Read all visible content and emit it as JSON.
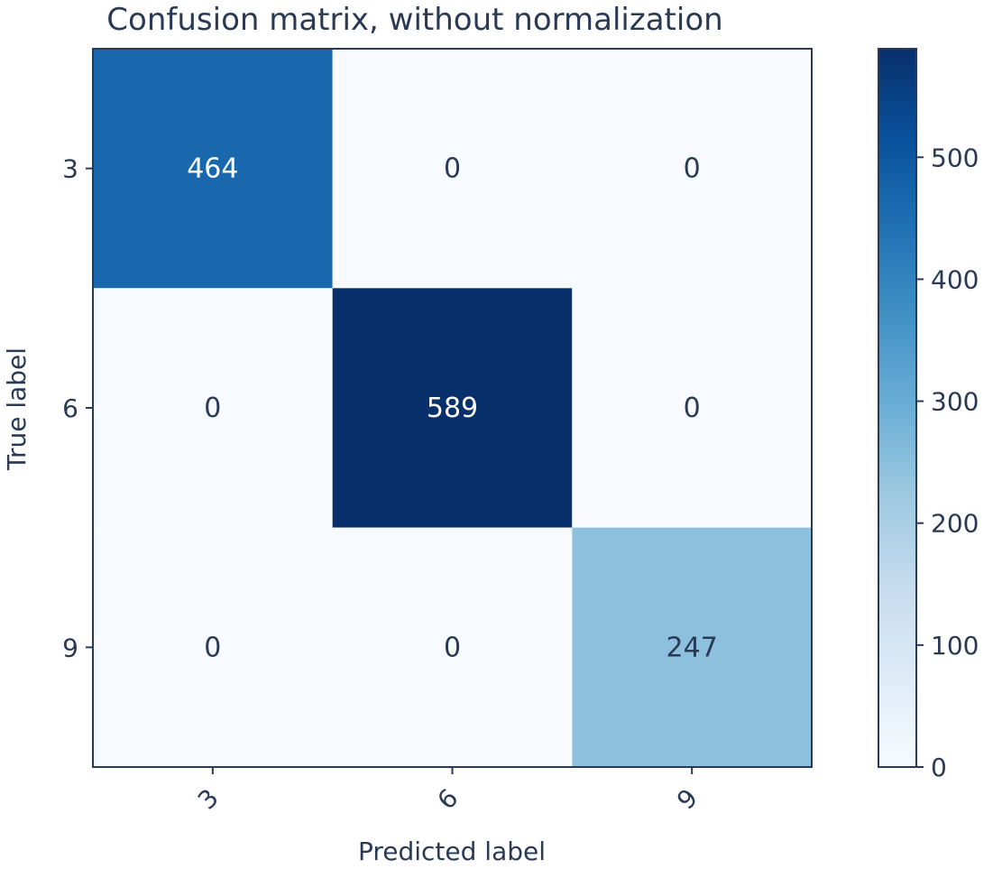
{
  "chart_data": {
    "type": "heatmap",
    "title": "Confusion matrix, without normalization",
    "xlabel": "Predicted label",
    "ylabel": "True label",
    "x_categories": [
      "3",
      "6",
      "9"
    ],
    "y_categories": [
      "3",
      "6",
      "9"
    ],
    "values": [
      [
        464,
        0,
        0
      ],
      [
        0,
        589,
        0
      ],
      [
        0,
        0,
        247
      ]
    ],
    "colormap": "Blues",
    "colorbar": {
      "min": 0,
      "max": 589,
      "ticks": [
        0,
        100,
        200,
        300,
        400,
        500
      ],
      "tick_labels": [
        "0",
        "100",
        "200",
        "300",
        "400",
        "500"
      ]
    },
    "x_tick_rotation": "45 degrees",
    "grid": false
  }
}
